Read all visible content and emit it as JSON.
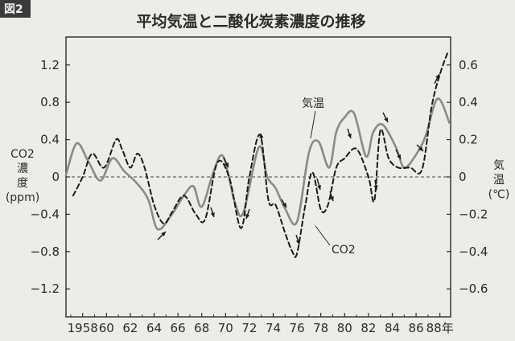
{
  "figure_label": "図2",
  "chart_data": {
    "type": "line",
    "title": "平均気温と二酸化炭素濃度の推移",
    "x_tick_labels": [
      "1958",
      "60",
      "62",
      "64",
      "66",
      "68",
      "70",
      "72",
      "74",
      "76",
      "78",
      "80",
      "82",
      "84",
      "86",
      "88年"
    ],
    "x_tick_values": [
      1958,
      1960,
      1962,
      1964,
      1966,
      1968,
      1970,
      1972,
      1974,
      1976,
      1978,
      1980,
      1982,
      1984,
      1986,
      1988
    ],
    "xlim": [
      1956.6,
      1988.9
    ],
    "left_axis": {
      "label_lines": [
        "CO2",
        "濃",
        "度",
        "(ppm)"
      ],
      "ylim": [
        -1.5,
        1.5
      ],
      "ticks": [
        1.2,
        0.8,
        0.4,
        0,
        -0.4,
        -0.8,
        -1.2
      ],
      "tick_labels": [
        "1.2",
        "0.8",
        "0.4",
        "0",
        "−0.4",
        "−0.8",
        "−1.2"
      ]
    },
    "right_axis": {
      "label_lines": [
        "気",
        "温",
        "(℃)"
      ],
      "ylim": [
        -0.75,
        0.75
      ],
      "ticks": [
        0.6,
        0.4,
        0.2,
        0,
        -0.2,
        -0.4,
        -0.6
      ],
      "tick_labels": [
        "0.6",
        "0.4",
        "0.2",
        "0",
        "−0.2",
        "−0.4",
        "−0.6"
      ]
    },
    "zero_reference_line": true,
    "series": [
      {
        "name": "気温",
        "axis": "right",
        "style": "solid",
        "color": "#8a8a8a",
        "x": [
          1956.6,
          1957.5,
          1958.5,
          1959.5,
          1960.5,
          1961.5,
          1962.5,
          1963.5,
          1964.3,
          1965.5,
          1966.5,
          1967.3,
          1968.0,
          1969.0,
          1969.8,
          1970.8,
          1971.5,
          1972.8,
          1973.5,
          1974.2,
          1975.0,
          1976.0,
          1977.0,
          1977.8,
          1978.7,
          1979.3,
          1980.0,
          1980.8,
          1981.8,
          1982.4,
          1983.2,
          1984.3,
          1985.0,
          1986.0,
          1986.8,
          1987.8,
          1988.8
        ],
        "y": [
          0.01,
          0.18,
          0.08,
          -0.02,
          0.1,
          0.03,
          -0.03,
          -0.12,
          -0.28,
          -0.2,
          -0.1,
          -0.05,
          -0.16,
          0.03,
          0.11,
          -0.14,
          -0.19,
          0.16,
          0.0,
          -0.06,
          -0.17,
          -0.24,
          0.13,
          0.19,
          0.05,
          0.24,
          0.32,
          0.34,
          0.11,
          0.24,
          0.28,
          0.16,
          0.05,
          0.12,
          0.22,
          0.42,
          0.29
        ]
      },
      {
        "name": "CO2",
        "axis": "left",
        "style": "dashed",
        "color": "#1a1a1a",
        "x": [
          1957.2,
          1958.0,
          1958.8,
          1959.8,
          1960.8,
          1961.3,
          1962.0,
          1962.6,
          1963.2,
          1964.0,
          1964.8,
          1965.5,
          1966.5,
          1967.5,
          1968.3,
          1969.3,
          1970.3,
          1971.3,
          1972.0,
          1972.9,
          1973.6,
          1974.2,
          1975.0,
          1975.6,
          1976.0,
          1976.7,
          1977.3,
          1978.0,
          1978.6,
          1979.3,
          1980.0,
          1981.0,
          1982.0,
          1982.5,
          1983.0,
          1983.7,
          1984.5,
          1985.5,
          1986.5,
          1987.3,
          1988.0,
          1988.7
        ],
        "y": [
          -0.2,
          0.0,
          0.25,
          0.1,
          0.4,
          0.3,
          0.1,
          0.25,
          0.1,
          -0.3,
          -0.5,
          -0.38,
          -0.2,
          -0.4,
          -0.45,
          0.15,
          0.0,
          -0.55,
          0.0,
          0.45,
          -0.25,
          -0.3,
          -0.6,
          -0.8,
          -0.82,
          -0.3,
          0.05,
          -0.35,
          -0.3,
          0.1,
          0.2,
          0.3,
          0.0,
          -0.25,
          0.5,
          0.2,
          0.1,
          0.1,
          0.08,
          0.75,
          1.1,
          1.35
        ]
      }
    ],
    "annotations": [
      {
        "text": "気温",
        "series": "気温"
      },
      {
        "text": "CO2",
        "series": "CO2"
      }
    ]
  }
}
